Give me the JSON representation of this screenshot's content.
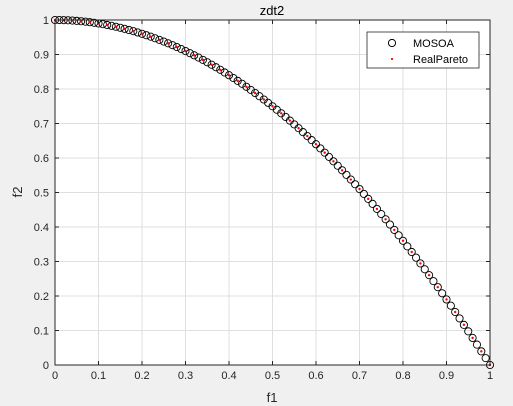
{
  "chart_data": {
    "type": "scatter",
    "title": "zdt2",
    "xlabel": "f1",
    "ylabel": "f2",
    "xlim": [
      0,
      1
    ],
    "ylim": [
      0,
      1
    ],
    "xticks": [
      0,
      0.1,
      0.2,
      0.3,
      0.4,
      0.5,
      0.6,
      0.7,
      0.8,
      0.9,
      1
    ],
    "yticks": [
      0,
      0.1,
      0.2,
      0.3,
      0.4,
      0.5,
      0.6,
      0.7,
      0.8,
      0.9,
      1
    ],
    "xtick_labels": [
      "0",
      "0.1",
      "0.2",
      "0.3",
      "0.4",
      "0.5",
      "0.6",
      "0.7",
      "0.8",
      "0.9",
      "1"
    ],
    "ytick_labels": [
      "0",
      "0.1",
      "0.2",
      "0.3",
      "0.4",
      "0.5",
      "0.6",
      "0.7",
      "0.8",
      "0.9",
      "1"
    ],
    "grid": true,
    "legend_position": "top-right",
    "series": [
      {
        "name": "MOSOA",
        "marker": "circle",
        "color": "#000000",
        "x": [
          0,
          0.01,
          0.02,
          0.03,
          0.04,
          0.05,
          0.06,
          0.07,
          0.08,
          0.09,
          0.1,
          0.11,
          0.12,
          0.13,
          0.14,
          0.15,
          0.16,
          0.17,
          0.18,
          0.19,
          0.2,
          0.21,
          0.22,
          0.23,
          0.24,
          0.25,
          0.26,
          0.27,
          0.28,
          0.29,
          0.3,
          0.31,
          0.32,
          0.33,
          0.34,
          0.35,
          0.36,
          0.37,
          0.38,
          0.39,
          0.4,
          0.41,
          0.42,
          0.43,
          0.44,
          0.45,
          0.46,
          0.47,
          0.48,
          0.49,
          0.5,
          0.51,
          0.52,
          0.53,
          0.54,
          0.55,
          0.56,
          0.57,
          0.58,
          0.59,
          0.6,
          0.61,
          0.62,
          0.63,
          0.64,
          0.65,
          0.66,
          0.67,
          0.68,
          0.69,
          0.7,
          0.71,
          0.72,
          0.73,
          0.74,
          0.75,
          0.76,
          0.77,
          0.78,
          0.79,
          0.8,
          0.81,
          0.82,
          0.83,
          0.84,
          0.85,
          0.86,
          0.87,
          0.88,
          0.89,
          0.9,
          0.91,
          0.92,
          0.93,
          0.94,
          0.95,
          0.96,
          0.97,
          0.98,
          0.99,
          1
        ],
        "y": [
          1,
          0.9999,
          0.9996,
          0.9991,
          0.9984,
          0.9975,
          0.9964,
          0.9951,
          0.9936,
          0.9919,
          0.99,
          0.9879,
          0.9856,
          0.9831,
          0.9804,
          0.9775,
          0.9744,
          0.9711,
          0.9676,
          0.9639,
          0.96,
          0.9559,
          0.9516,
          0.9471,
          0.9424,
          0.9375,
          0.9324,
          0.9271,
          0.9216,
          0.9159,
          0.91,
          0.9039,
          0.8976,
          0.8911,
          0.8844,
          0.8775,
          0.8704,
          0.8631,
          0.8556,
          0.8479,
          0.84,
          0.8319,
          0.8236,
          0.8151,
          0.8064,
          0.7975,
          0.7884,
          0.7791,
          0.7696,
          0.7599,
          0.75,
          0.7399,
          0.7296,
          0.7191,
          0.7084,
          0.6975,
          0.6864,
          0.6751,
          0.6636,
          0.6519,
          0.64,
          0.6279,
          0.6156,
          0.6031,
          0.5904,
          0.5775,
          0.5644,
          0.5511,
          0.5376,
          0.5239,
          0.51,
          0.4959,
          0.4816,
          0.4671,
          0.4524,
          0.4375,
          0.4224,
          0.4071,
          0.3916,
          0.3759,
          0.36,
          0.3439,
          0.3276,
          0.3111,
          0.2944,
          0.2775,
          0.2604,
          0.2431,
          0.2256,
          0.2079,
          0.19,
          0.1719,
          0.1536,
          0.1351,
          0.1164,
          0.0975,
          0.0784,
          0.0591,
          0.0396,
          0.0199,
          0
        ]
      },
      {
        "name": "RealPareto",
        "marker": "dot",
        "color": "#ff0000",
        "x": [
          0,
          0.02,
          0.04,
          0.06,
          0.08,
          0.1,
          0.12,
          0.14,
          0.16,
          0.18,
          0.2,
          0.22,
          0.24,
          0.26,
          0.28,
          0.3,
          0.32,
          0.34,
          0.36,
          0.38,
          0.4,
          0.42,
          0.44,
          0.46,
          0.48,
          0.5,
          0.52,
          0.54,
          0.56,
          0.58,
          0.6,
          0.62,
          0.64,
          0.66,
          0.68,
          0.7,
          0.72,
          0.74,
          0.76,
          0.78,
          0.8,
          0.82,
          0.84,
          0.86,
          0.88,
          0.9,
          0.92,
          0.94,
          0.96,
          0.98,
          1
        ],
        "y": [
          1,
          0.9996,
          0.9984,
          0.9964,
          0.9936,
          0.99,
          0.9856,
          0.9804,
          0.9744,
          0.9676,
          0.96,
          0.9516,
          0.9424,
          0.9324,
          0.9216,
          0.91,
          0.8976,
          0.8844,
          0.8704,
          0.8556,
          0.84,
          0.8236,
          0.8064,
          0.7884,
          0.7696,
          0.75,
          0.7296,
          0.7084,
          0.6864,
          0.6636,
          0.64,
          0.6156,
          0.5904,
          0.5644,
          0.5376,
          0.51,
          0.4816,
          0.4524,
          0.4224,
          0.3916,
          0.36,
          0.3276,
          0.2944,
          0.2604,
          0.2256,
          0.19,
          0.1536,
          0.1164,
          0.0784,
          0.0396,
          0
        ]
      }
    ]
  }
}
